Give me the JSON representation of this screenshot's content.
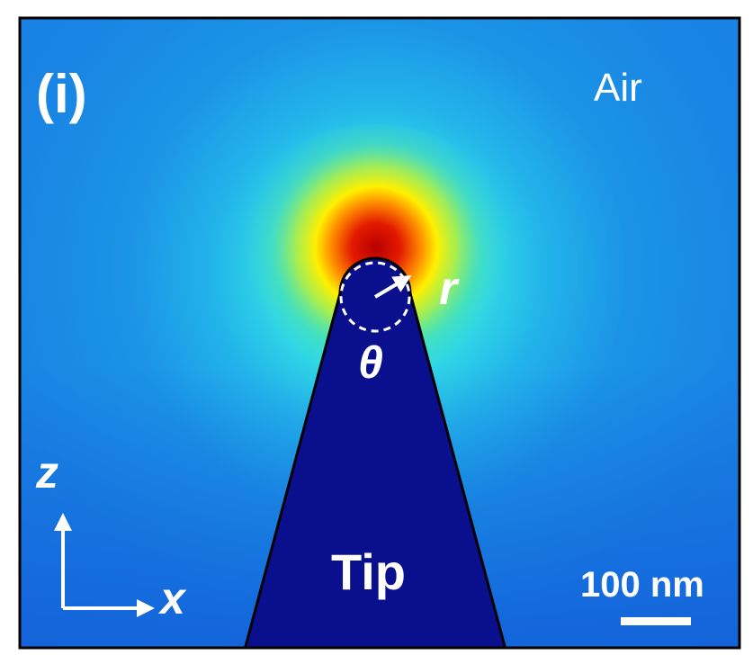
{
  "panel_label": "(i)",
  "region_labels": {
    "air": "Air",
    "tip": "Tip"
  },
  "symbols": {
    "radius": "r",
    "angle": "θ"
  },
  "axes": {
    "vertical": "z",
    "horizontal": "x"
  },
  "scale_bar": {
    "label": "100 nm"
  },
  "colors": {
    "background_field": "#1a86e8",
    "tip_fill": "#0a0f8e",
    "hot_spot_core": "#cc0000",
    "frame": "#000000",
    "text": "#ffffff"
  }
}
